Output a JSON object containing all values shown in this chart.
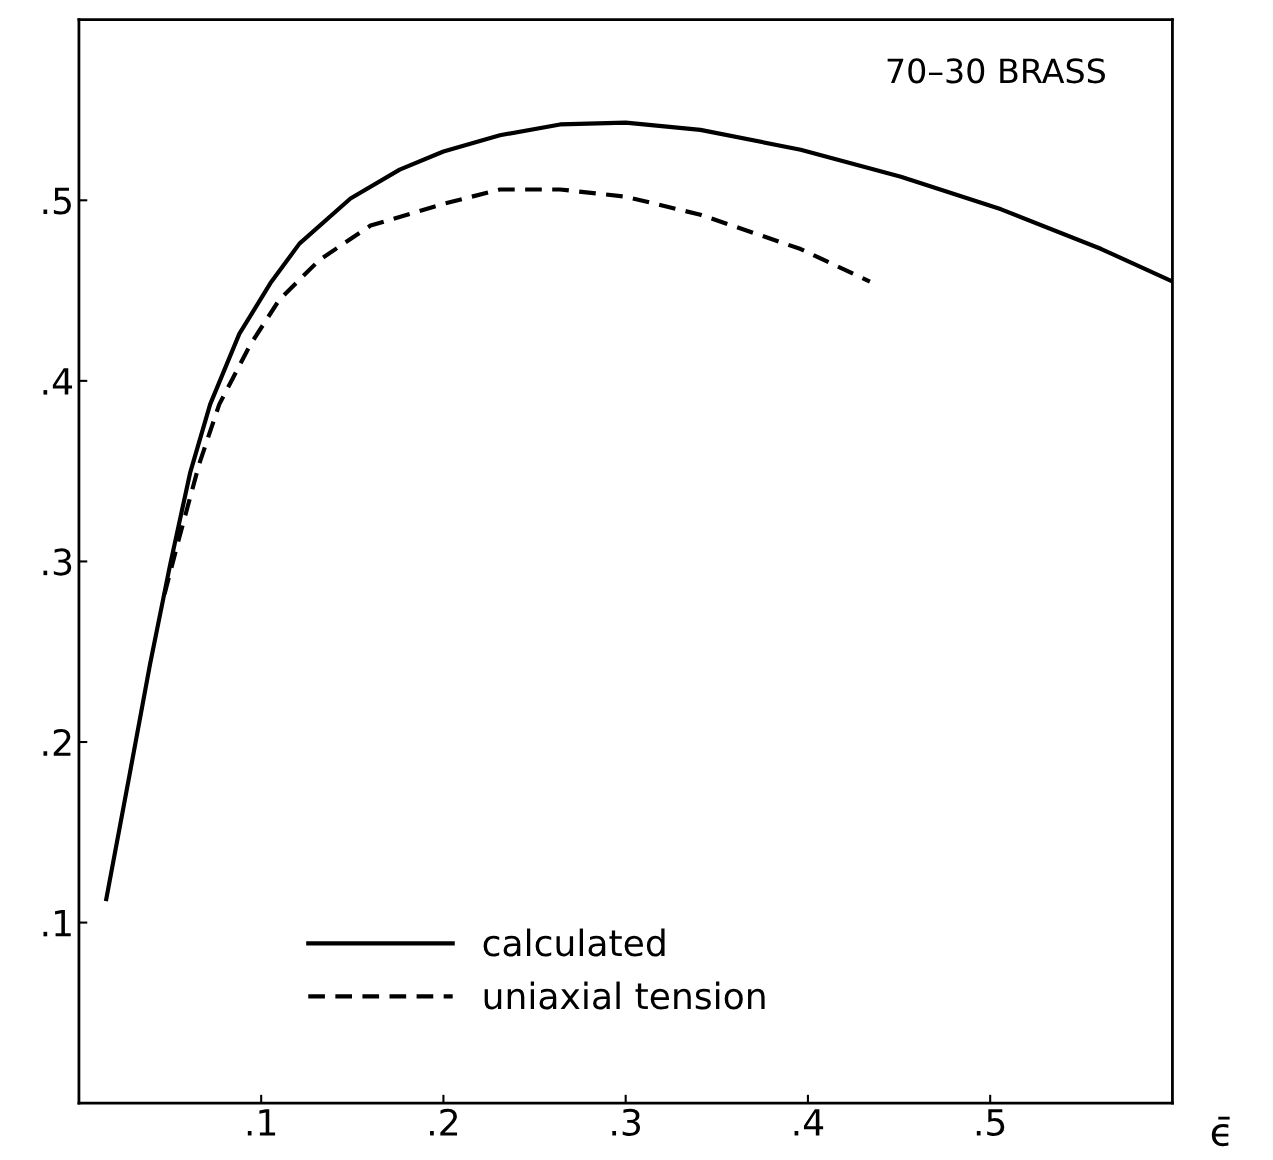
{
  "chart_data": {
    "type": "line",
    "xlabel": "ϵ̄",
    "annotations": [
      "70–30 BRASS"
    ],
    "xlim": [
      0,
      0.6
    ],
    "ylim": [
      0,
      0.6
    ],
    "xticks": [
      {
        "value": 0.1,
        "label": ".1"
      },
      {
        "value": 0.2,
        "label": ".2"
      },
      {
        "value": 0.3,
        "label": ".3"
      },
      {
        "value": 0.4,
        "label": ".4"
      },
      {
        "value": 0.5,
        "label": ".5"
      }
    ],
    "yticks": [
      {
        "value": 0.1,
        "label": ".1"
      },
      {
        "value": 0.2,
        "label": ".2"
      },
      {
        "value": 0.3,
        "label": ".3"
      },
      {
        "value": 0.4,
        "label": ".4"
      },
      {
        "value": 0.5,
        "label": ".5"
      }
    ],
    "grid": false,
    "legend": "bottom left",
    "series": [
      {
        "name": "calculated",
        "color": "#000000",
        "line_style": "solid",
        "x": [
          0.015,
          0.028,
          0.039,
          0.05,
          0.061,
          0.072,
          0.088,
          0.105,
          0.121,
          0.149,
          0.176,
          0.2,
          0.231,
          0.264,
          0.3,
          0.341,
          0.396,
          0.451,
          0.506,
          0.561,
          0.6
        ],
        "values": [
          0.113,
          0.183,
          0.243,
          0.298,
          0.349,
          0.387,
          0.426,
          0.454,
          0.476,
          0.501,
          0.517,
          0.527,
          0.536,
          0.542,
          0.543,
          0.539,
          0.528,
          0.513,
          0.495,
          0.473,
          0.455
        ]
      },
      {
        "name": "uniaxial tension",
        "color": "#000000",
        "line_style": "dashed",
        "x": [
          0.047,
          0.055,
          0.066,
          0.077,
          0.094,
          0.11,
          0.132,
          0.16,
          0.2,
          0.231,
          0.264,
          0.3,
          0.341,
          0.396,
          0.434
        ],
        "values": [
          0.282,
          0.313,
          0.354,
          0.387,
          0.42,
          0.445,
          0.467,
          0.486,
          0.498,
          0.506,
          0.506,
          0.502,
          0.492,
          0.473,
          0.455
        ]
      }
    ]
  }
}
